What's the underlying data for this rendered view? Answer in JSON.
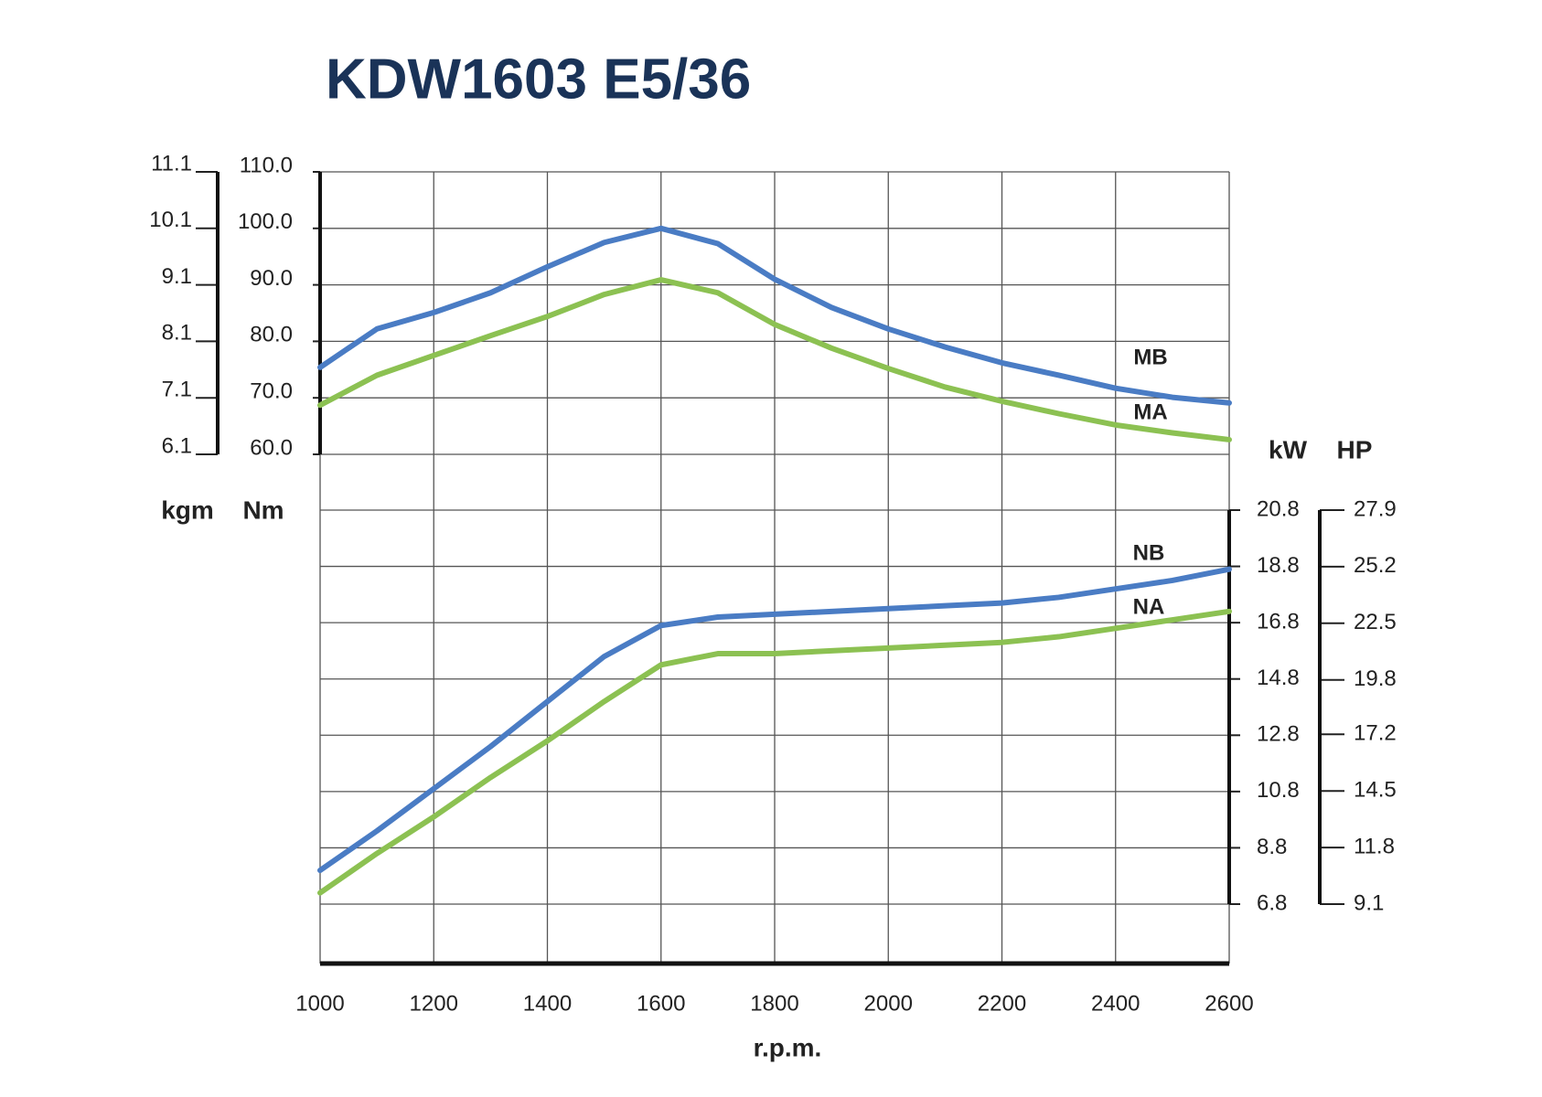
{
  "chart_data": {
    "type": "line",
    "title": "KDW1603 E5/36",
    "xlabel": "r.p.m.",
    "x": [
      1000,
      1100,
      1200,
      1300,
      1400,
      1500,
      1600,
      1700,
      1800,
      1900,
      2000,
      2100,
      2200,
      2300,
      2400,
      2500,
      2600
    ],
    "xlim": [
      1000,
      2600
    ],
    "xticks": [
      1000,
      1200,
      1400,
      1600,
      1800,
      2000,
      2200,
      2400,
      2600
    ],
    "ylabel": "Nm",
    "ylim": [
      60,
      110
    ],
    "yticks": [
      {
        "value": 60,
        "label": "60.0"
      },
      {
        "value": 70,
        "label": "70.0"
      },
      {
        "value": 80,
        "label": "80.0"
      },
      {
        "value": 90,
        "label": "90.0"
      },
      {
        "value": 100,
        "label": "100.0"
      },
      {
        "value": 110,
        "label": "110.0"
      }
    ],
    "y_alt": {
      "label": "kgm",
      "lim": [
        6.1,
        11.1
      ],
      "ticks": [
        6.1,
        7.1,
        8.1,
        9.1,
        10.1,
        11.1
      ]
    },
    "y2label": "kW",
    "y2lim": [
      6.8,
      20.8
    ],
    "y2ticks": [
      6.8,
      8.8,
      10.8,
      12.8,
      14.8,
      16.8,
      18.8,
      20.8
    ],
    "y2_alt": {
      "label": "HP",
      "lim": [
        9.1,
        27.9
      ],
      "ticks": [
        9.1,
        11.8,
        14.5,
        17.2,
        19.8,
        22.5,
        25.2,
        27.9
      ]
    },
    "grid": true,
    "series": [
      {
        "name": "MB",
        "color": "#4a7cc4",
        "values": [
          75.4,
          82.2,
          85.1,
          88.6,
          93.2,
          97.5,
          100,
          97.3,
          91,
          86,
          82.2,
          79,
          76.2,
          74,
          71.7,
          70.1,
          69.1
        ]
      },
      {
        "name": "MA",
        "color": "#8cc152",
        "values": [
          68.7,
          74,
          77.5,
          81,
          84.4,
          88.3,
          90.9,
          88.6,
          83,
          78.8,
          75.2,
          71.9,
          69.4,
          67.2,
          65.2,
          63.8,
          62.6
        ]
      },
      {
        "name": "NB",
        "color": "#4a7cc4",
        "axis": "y2",
        "values": [
          8.0,
          9.4,
          10.9,
          12.4,
          14.0,
          15.6,
          16.7,
          17.0,
          17.1,
          17.2,
          17.3,
          17.4,
          17.5,
          17.7,
          18.0,
          18.3,
          18.7
        ]
      },
      {
        "name": "NA",
        "color": "#8cc152",
        "axis": "y2",
        "values": [
          7.2,
          8.6,
          9.9,
          11.3,
          12.6,
          14.0,
          15.3,
          15.7,
          15.7,
          15.8,
          15.9,
          16.0,
          16.1,
          16.3,
          16.6,
          16.9,
          17.2
        ]
      }
    ]
  }
}
